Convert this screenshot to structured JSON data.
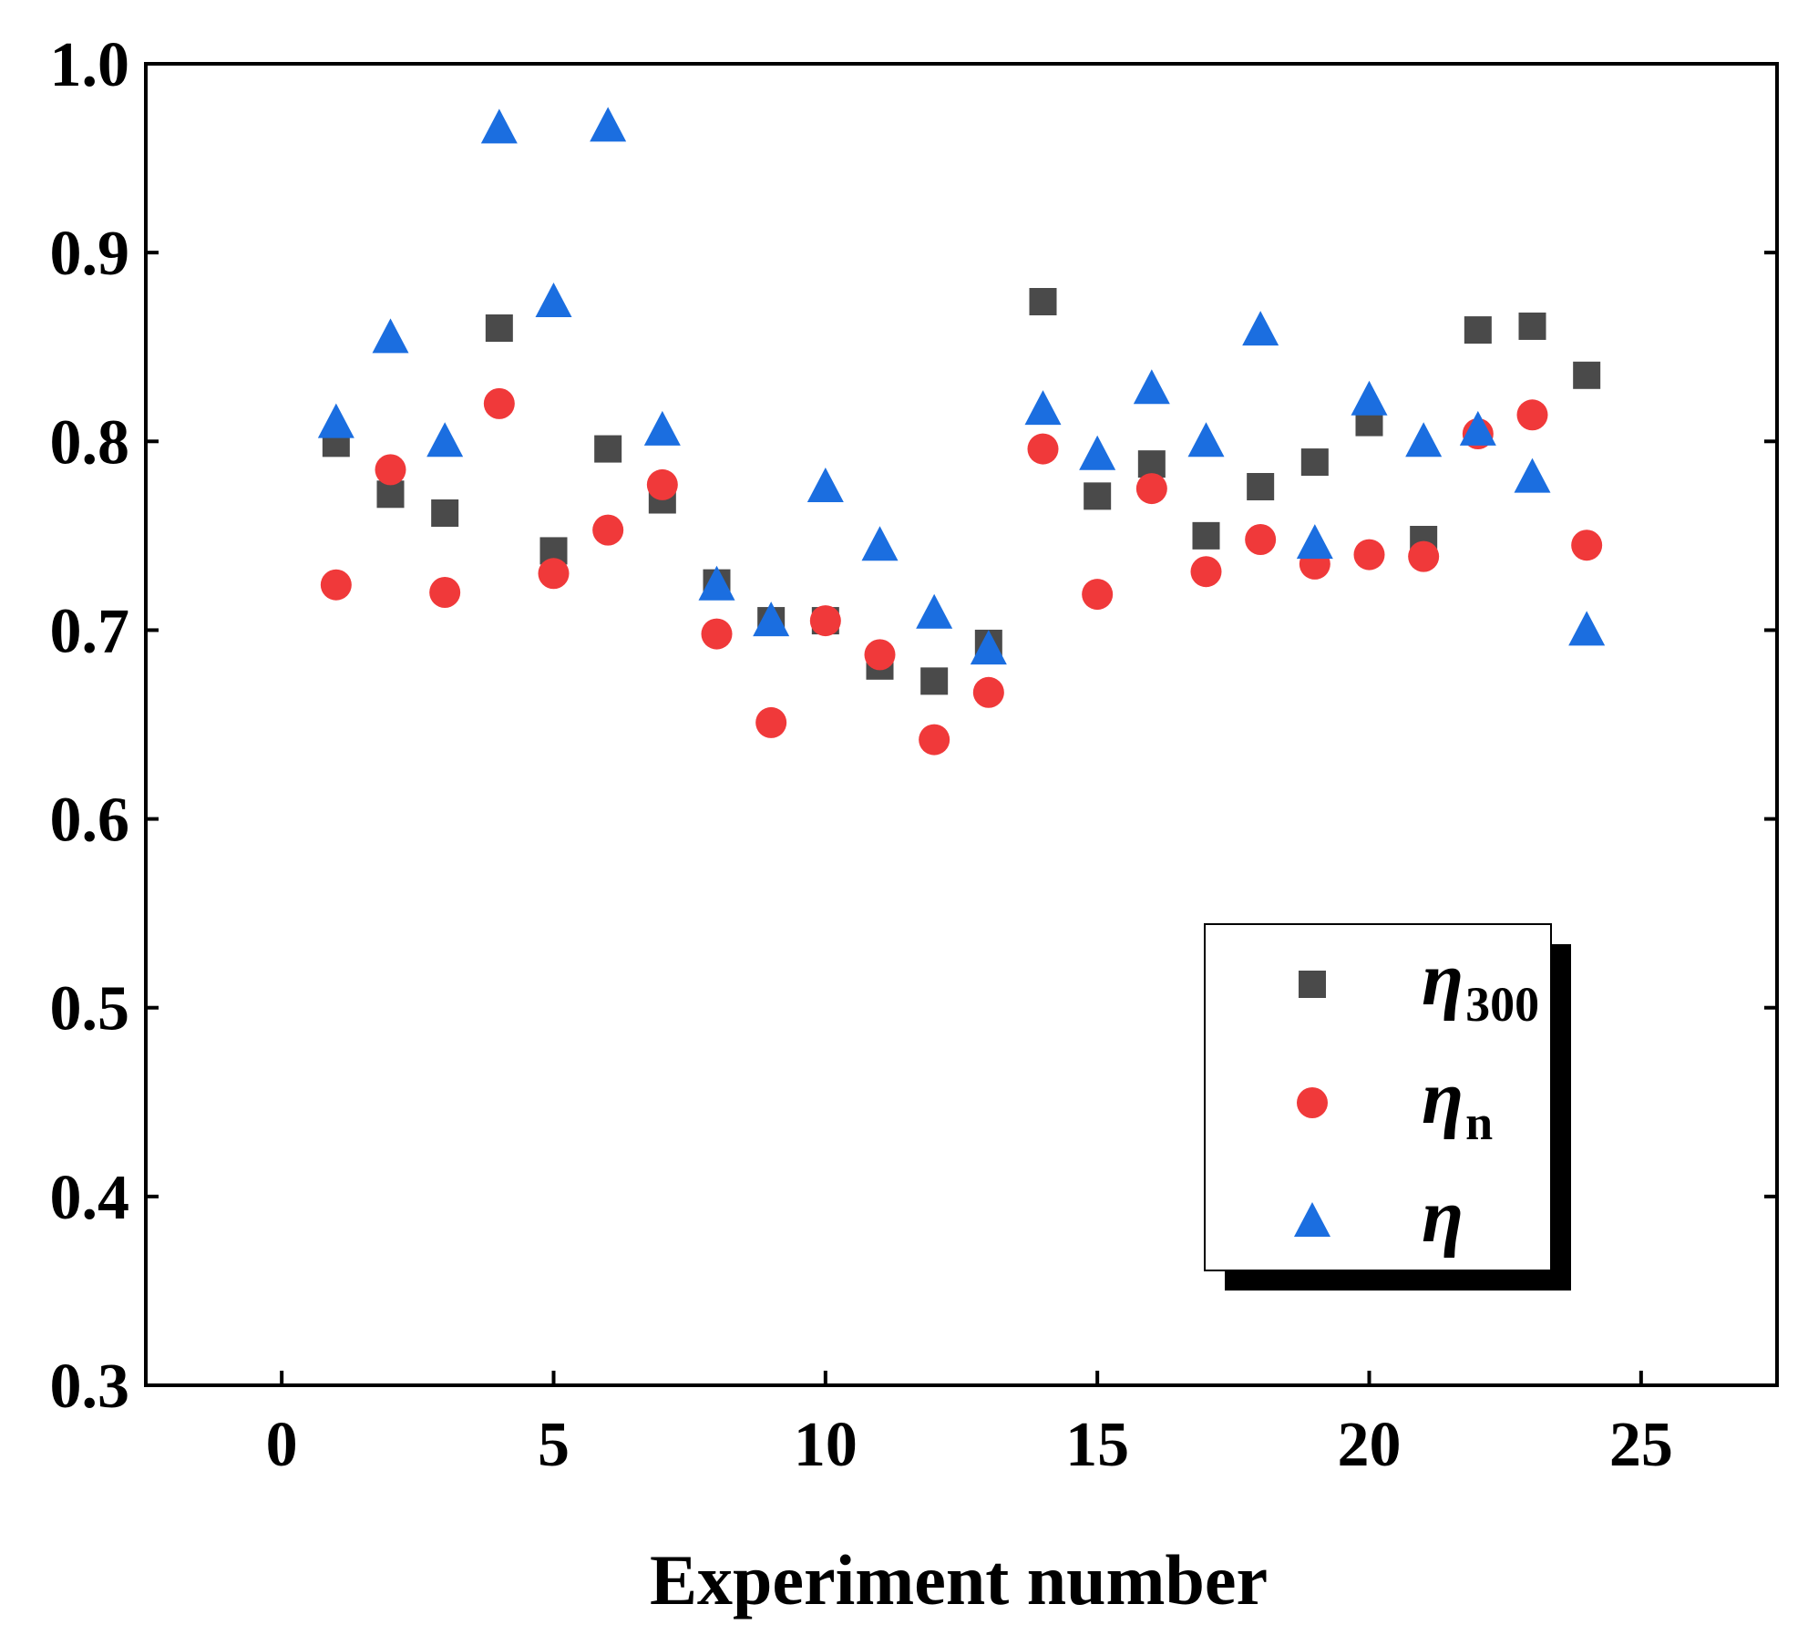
{
  "chart_data": {
    "type": "scatter",
    "title": "",
    "xlabel": "Experiment number",
    "ylabel": "",
    "xlim": [
      -2.5,
      27.5
    ],
    "ylim": [
      0.3,
      1.0
    ],
    "xticks": [
      0,
      5,
      10,
      15,
      20,
      25
    ],
    "yticks": [
      0.3,
      0.4,
      0.5,
      0.6,
      0.7,
      0.8,
      0.9,
      1.0
    ],
    "xtick_labels": [
      "0",
      "5",
      "10",
      "15",
      "20",
      "25"
    ],
    "ytick_labels": [
      "0.3",
      "0.4",
      "0.5",
      "0.6",
      "0.7",
      "0.8",
      "0.9",
      "1.0"
    ],
    "grid": false,
    "legend_position": "bottom-right",
    "x": [
      1,
      2,
      3,
      4,
      5,
      6,
      7,
      8,
      9,
      10,
      11,
      12,
      13,
      14,
      15,
      16,
      17,
      18,
      19,
      20,
      21,
      22,
      23,
      24
    ],
    "series": [
      {
        "name": "η300",
        "symbol": "η",
        "subscript": "300",
        "marker": "square",
        "color": "#4a4a4a",
        "values": [
          0.799,
          0.772,
          0.762,
          0.86,
          0.742,
          0.796,
          0.769,
          0.725,
          0.705,
          0.705,
          0.681,
          0.673,
          0.693,
          0.874,
          0.771,
          0.788,
          0.75,
          0.776,
          0.789,
          0.81,
          0.748,
          0.859,
          0.861,
          0.835
        ]
      },
      {
        "name": "ηn",
        "symbol": "η",
        "subscript": "n",
        "marker": "circle",
        "color": "#f0393a",
        "values": [
          0.724,
          0.785,
          0.72,
          0.82,
          0.73,
          0.753,
          0.777,
          0.698,
          0.651,
          0.705,
          0.687,
          0.642,
          0.667,
          0.796,
          0.719,
          0.775,
          0.731,
          0.748,
          0.735,
          0.74,
          0.739,
          0.804,
          0.814,
          0.745
        ]
      },
      {
        "name": "η",
        "symbol": "η",
        "subscript": "",
        "marker": "triangle",
        "color": "#1b6ee0",
        "values": [
          0.81,
          0.855,
          0.8,
          0.966,
          0.874,
          0.967,
          0.806,
          0.724,
          0.705,
          0.776,
          0.745,
          0.709,
          0.69,
          0.817,
          0.793,
          0.828,
          0.8,
          0.859,
          0.746,
          0.822,
          0.8,
          0.806,
          0.781,
          0.7
        ]
      }
    ]
  }
}
